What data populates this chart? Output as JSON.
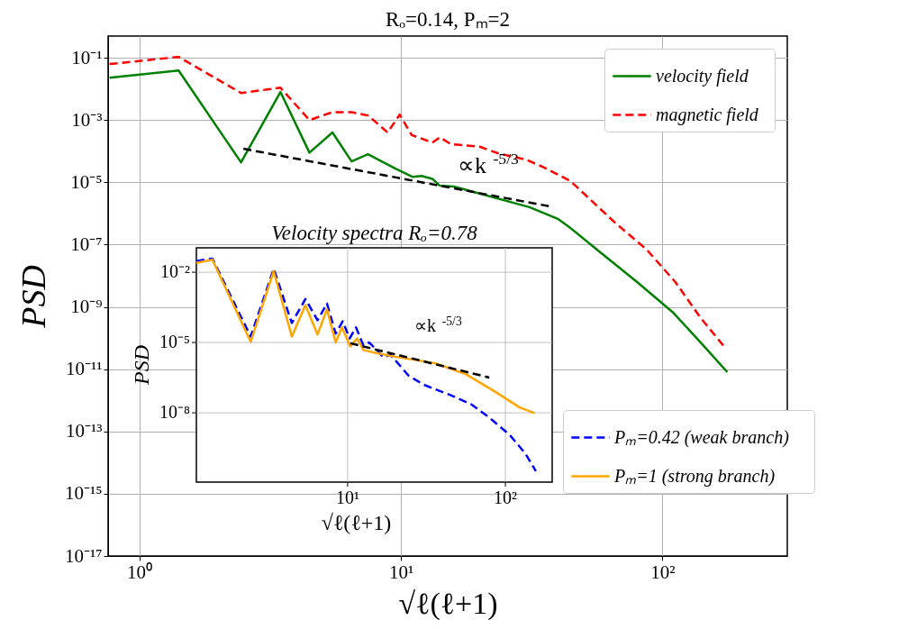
{
  "chart_data": [
    {
      "type": "line",
      "title": "Rₒ=0.14, Pₘ=2",
      "xlabel": "√ℓ(ℓ+1)",
      "ylabel": "PSD",
      "log": "xy",
      "xlim": [
        0.76,
        300
      ],
      "ylim": [
        1e-17,
        0.5
      ],
      "xticks": [
        {
          "value": 1,
          "label": "10⁰"
        },
        {
          "value": 10,
          "label": "10¹"
        },
        {
          "value": 100,
          "label": "10²"
        }
      ],
      "yticks": [
        {
          "value": 1e-17,
          "label": "10⁻¹⁷"
        },
        {
          "value": 1e-15,
          "label": "10⁻¹⁵"
        },
        {
          "value": 1e-13,
          "label": "10⁻¹³"
        },
        {
          "value": 1e-11,
          "label": "10⁻¹¹"
        },
        {
          "value": 1e-09,
          "label": "10⁻⁹"
        },
        {
          "value": 1e-07,
          "label": "10⁻⁷"
        },
        {
          "value": 1e-05,
          "label": "10⁻⁵"
        },
        {
          "value": 0.001,
          "label": "10⁻³"
        },
        {
          "value": 0.1,
          "label": "10⁻¹"
        }
      ],
      "grid": true,
      "legend": "top right",
      "series": [
        {
          "name": "velocity   field",
          "color": "#008000",
          "line_style": "solid",
          "x": [
            0.77,
            1.414,
            2.449,
            3.464,
            4.472,
            5.477,
            6.481,
            7.483,
            9.5,
            11.1,
            12.0,
            13.2,
            14.1,
            15.9,
            31,
            40,
            44.5,
            58,
            80,
            110,
            140,
            177
          ],
          "values": [
            0.023,
            0.039,
            4.4e-05,
            0.008,
            9e-05,
            0.0004,
            4.7e-05,
            8e-05,
            2.8e-05,
            1.5e-05,
            1.6e-05,
            1.3e-05,
            7.8e-06,
            7.4e-06,
            1.6e-06,
            6.6e-07,
            3.4e-07,
            5.6e-08,
            6.3e-09,
            6.5e-10,
            7.2e-11,
            8e-12
          ]
        },
        {
          "name": "magnetic   field",
          "color": "#ff0000",
          "line_style": "dashed",
          "x": [
            0.77,
            1.414,
            2.449,
            3.464,
            4.472,
            5.477,
            6.481,
            7.5,
            8.9,
            9.9,
            11,
            13.2,
            14.1,
            15.5,
            20,
            23.6,
            30,
            35,
            44.5,
            66,
            87,
            112,
            140,
            175
          ],
          "values": [
            0.063,
            0.107,
            0.0074,
            0.011,
            0.001,
            0.0018,
            0.0018,
            0.0014,
            0.0004,
            0.0015,
            0.00033,
            0.00019,
            0.00028,
            0.00017,
            0.00014,
            8.5e-05,
            5.4e-05,
            3.1e-05,
            1.1e-05,
            5e-07,
            6.9e-08,
            6.3e-09,
            4.4e-10,
            4.5e-11
          ]
        },
        {
          "type": "line",
          "color": "#000000",
          "line_style": "dashed",
          "x": [
            2.5,
            37
          ],
          "values": [
            0.00012,
            1.7e-06
          ]
        }
      ],
      "annotations": [
        "∝k$^{-5/3}$"
      ]
    },
    {
      "type": "line",
      "title": "Velocity   spectra   Rₒ=0.78",
      "xlabel": "√ℓ(ℓ+1)",
      "ylabel": "PSD",
      "log": "xy",
      "xlim": [
        1.1,
        198
      ],
      "ylim": [
        1.1e-11,
        0.11
      ],
      "xticks": [
        {
          "value": 10,
          "label": "10¹"
        },
        {
          "value": 100,
          "label": "10²"
        }
      ],
      "yticks": [
        {
          "value": 1e-08,
          "label": "10⁻⁸"
        },
        {
          "value": 1e-05,
          "label": "10⁻⁵"
        },
        {
          "value": 0.01,
          "label": "10⁻²"
        }
      ],
      "grid": true,
      "legend": "bottom right",
      "series": [
        {
          "name": "Pₘ=0.42   (weak   branch)",
          "color": "#0000ff",
          "line_style": "dashed",
          "x": [
            1.1,
            1.39,
            2.43,
            3.4,
            4.43,
            5.4,
            6.45,
            7.4,
            8.4,
            9.3,
            10.3,
            11.3,
            12.6,
            13.7,
            15,
            16.9,
            18.6,
            21.3,
            24.3,
            30.2,
            44.8,
            60.8,
            79,
            107,
            134,
            156
          ],
          "values": [
            0.03,
            0.038,
            1.8e-05,
            0.014,
            6.8e-05,
            0.00072,
            9e-05,
            0.00046,
            2.4e-05,
            8e-05,
            1.5e-05,
            4.4e-05,
            7.4e-06,
            1e-05,
            5.5e-06,
            2.3e-06,
            3.1e-06,
            1.1e-06,
            3.9e-07,
            1.6e-07,
            5.7e-08,
            2.3e-08,
            6.3e-09,
            1.1e-09,
            1.8e-10,
            3.2e-11
          ]
        },
        {
          "name": "Pₘ=1   (strong   branch)",
          "color": "#ffa500",
          "line_style": "solid",
          "x": [
            1.1,
            1.39,
            2.43,
            3.4,
            4.43,
            5.4,
            6.45,
            7.4,
            8.4,
            9.2,
            10.4,
            11.5,
            12.6,
            14.3,
            18.6,
            36,
            56,
            87,
            123,
            153
          ],
          "values": [
            0.025,
            0.034,
            1.07e-05,
            0.011,
            1.8e-05,
            0.0004,
            2.2e-05,
            0.00026,
            1e-05,
            4.4e-05,
            6.8e-06,
            1.5e-05,
            4.8e-06,
            3.9e-06,
            2.7e-06,
            1.3e-06,
            4.5e-07,
            7.6e-08,
            1.7e-08,
            9.8e-09
          ]
        },
        {
          "type": "line",
          "color": "#000000",
          "line_style": "dashed",
          "x": [
            10.4,
            79
          ],
          "values": [
            9.3e-06,
            3.2e-07
          ]
        }
      ],
      "annotations": [
        "∝k$^{-5/3}$"
      ]
    }
  ]
}
